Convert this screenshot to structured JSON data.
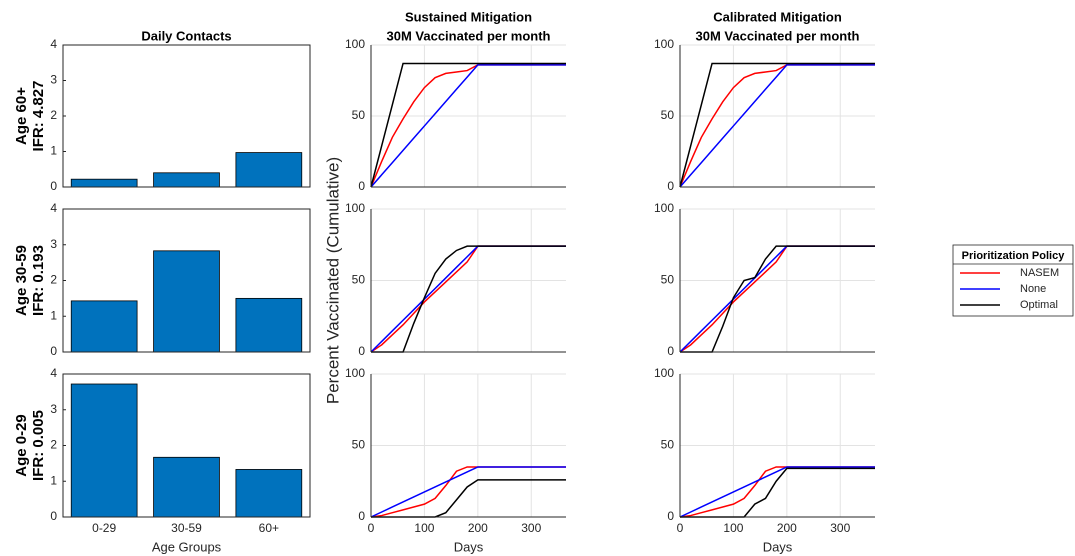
{
  "chart_data": [
    {
      "type": "bar",
      "title": "Daily Contacts",
      "ylabel": [
        "Age 60+",
        "IFR: 4.827"
      ],
      "values": [
        0.22,
        0.4,
        0.97
      ],
      "color": "#0072bd",
      "ylim": [
        0,
        4
      ],
      "yticks": [
        0,
        1,
        2,
        3,
        4
      ]
    },
    {
      "type": "line",
      "title": "Sustained Mitigation",
      "subtitle": "30M Vaccinated per month",
      "x": [
        0,
        20,
        40,
        60,
        80,
        100,
        120,
        140,
        160,
        180,
        200,
        250,
        300,
        365
      ],
      "xlim": [
        0,
        365
      ],
      "xticks": [
        0,
        100,
        200,
        300
      ],
      "xtick_labels_shown": false,
      "ylim": [
        0,
        100
      ],
      "yticks": [
        0,
        50,
        100
      ],
      "grid": true,
      "series": [
        {
          "color": "#ff0000",
          "values": [
            0,
            18,
            35,
            48,
            60,
            70,
            77,
            80,
            81,
            82,
            86,
            86,
            86,
            86
          ]
        },
        {
          "color": "#0000ff",
          "values": [
            0,
            8.6,
            17.2,
            25.8,
            34.4,
            43,
            51.6,
            60.2,
            68.8,
            77.4,
            86,
            86,
            86,
            86
          ]
        },
        {
          "color": "#000000",
          "values": [
            0,
            29,
            58,
            87,
            87,
            87,
            87,
            87,
            87,
            87,
            87,
            87,
            87,
            87
          ]
        }
      ]
    },
    {
      "type": "line",
      "title": "Calibrated Mitigation",
      "subtitle": "30M Vaccinated per month",
      "x": [
        0,
        20,
        40,
        60,
        80,
        100,
        120,
        140,
        160,
        180,
        200,
        250,
        300,
        365
      ],
      "xlim": [
        0,
        365
      ],
      "xticks": [
        0,
        100,
        200,
        300
      ],
      "xtick_labels_shown": false,
      "ylim": [
        0,
        100
      ],
      "yticks": [
        0,
        50,
        100
      ],
      "grid": true,
      "series": [
        {
          "color": "#ff0000",
          "values": [
            0,
            18,
            35,
            48,
            60,
            70,
            77,
            80,
            81,
            82,
            86,
            86,
            86,
            86
          ]
        },
        {
          "color": "#0000ff",
          "values": [
            0,
            8.6,
            17.2,
            25.8,
            34.4,
            43,
            51.6,
            60.2,
            68.8,
            77.4,
            86,
            86,
            86,
            86
          ]
        },
        {
          "color": "#000000",
          "values": [
            0,
            29,
            58,
            87,
            87,
            87,
            87,
            87,
            87,
            87,
            87,
            87,
            87,
            87
          ]
        }
      ]
    },
    {
      "type": "bar",
      "ylabel": [
        "Age 30-59",
        "IFR: 0.193"
      ],
      "values": [
        1.43,
        2.83,
        1.5
      ],
      "color": "#0072bd",
      "ylim": [
        0,
        4
      ],
      "yticks": [
        0,
        1,
        2,
        3,
        4
      ]
    },
    {
      "type": "line",
      "ylabel": "Percent Vaccinated (Cumulative)",
      "x": [
        0,
        20,
        40,
        60,
        80,
        100,
        120,
        140,
        160,
        180,
        200,
        250,
        300,
        365
      ],
      "xlim": [
        0,
        365
      ],
      "xticks": [
        0,
        100,
        200,
        300
      ],
      "xtick_labels_shown": false,
      "ylim": [
        0,
        100
      ],
      "yticks": [
        0,
        50,
        100
      ],
      "grid": true,
      "series": [
        {
          "color": "#ff0000",
          "values": [
            0,
            5,
            12,
            19,
            27,
            35,
            42,
            49,
            56,
            63,
            74,
            74,
            74,
            74
          ]
        },
        {
          "color": "#0000ff",
          "values": [
            0,
            7.4,
            14.8,
            22.2,
            29.6,
            37,
            44.4,
            51.8,
            59.2,
            66.6,
            74,
            74,
            74,
            74
          ]
        },
        {
          "color": "#000000",
          "values": [
            0,
            0,
            0,
            0,
            20,
            38,
            55,
            65,
            71,
            74,
            74,
            74,
            74,
            74
          ]
        }
      ]
    },
    {
      "type": "line",
      "legend_title": "Prioritization Policy",
      "x": [
        0,
        20,
        40,
        60,
        80,
        100,
        120,
        140,
        160,
        180,
        200,
        250,
        300,
        365
      ],
      "xlim": [
        0,
        365
      ],
      "xticks": [
        0,
        100,
        200,
        300
      ],
      "xtick_labels_shown": false,
      "ylim": [
        0,
        100
      ],
      "yticks": [
        0,
        50,
        100
      ],
      "grid": true,
      "series": [
        {
          "name": "NASEM",
          "color": "#ff0000",
          "values": [
            0,
            5,
            12,
            19,
            27,
            35,
            42,
            49,
            56,
            63,
            74,
            74,
            74,
            74
          ]
        },
        {
          "name": "None",
          "color": "#0000ff",
          "values": [
            0,
            7.4,
            14.8,
            22.2,
            29.6,
            37,
            44.4,
            51.8,
            59.2,
            66.6,
            74,
            74,
            74,
            74
          ]
        },
        {
          "name": "Optimal",
          "color": "#000000",
          "values": [
            0,
            0,
            0,
            0,
            18,
            38,
            50,
            52,
            65,
            74,
            74,
            74,
            74,
            74
          ]
        }
      ]
    },
    {
      "type": "bar",
      "ylabel": [
        "Age 0-29",
        "IFR: 0.005"
      ],
      "xlabel": "Age Groups",
      "categories": [
        "0-29",
        "30-59",
        "60+"
      ],
      "values": [
        3.72,
        1.67,
        1.33
      ],
      "color": "#0072bd",
      "ylim": [
        0,
        4
      ],
      "yticks": [
        0,
        1,
        2,
        3,
        4
      ]
    },
    {
      "type": "line",
      "xlabel": "Days",
      "x": [
        0,
        20,
        40,
        60,
        80,
        100,
        120,
        140,
        160,
        180,
        200,
        250,
        300,
        365
      ],
      "xlim": [
        0,
        365
      ],
      "xticks": [
        0,
        100,
        200,
        300
      ],
      "xtick_labels_shown": true,
      "ylim": [
        0,
        100
      ],
      "yticks": [
        0,
        50,
        100
      ],
      "grid": true,
      "series": [
        {
          "color": "#ff0000",
          "values": [
            0,
            1,
            3,
            5,
            7,
            9,
            13,
            22,
            32,
            35,
            35,
            35,
            35,
            35
          ]
        },
        {
          "color": "#0000ff",
          "values": [
            0,
            3.5,
            7,
            10.5,
            14,
            17.5,
            21,
            24.5,
            28,
            31.5,
            35,
            35,
            35,
            35
          ]
        },
        {
          "color": "#000000",
          "values": [
            0,
            0,
            0,
            0,
            0,
            0,
            0,
            3,
            12,
            21,
            26,
            26,
            26,
            26
          ]
        }
      ]
    },
    {
      "type": "line",
      "xlabel": "Days",
      "x": [
        0,
        20,
        40,
        60,
        80,
        100,
        120,
        140,
        160,
        180,
        200,
        250,
        300,
        365
      ],
      "xlim": [
        0,
        365
      ],
      "xticks": [
        0,
        100,
        200,
        300
      ],
      "xtick_labels_shown": true,
      "ylim": [
        0,
        100
      ],
      "yticks": [
        0,
        50,
        100
      ],
      "grid": true,
      "series": [
        {
          "color": "#ff0000",
          "values": [
            0,
            1,
            3,
            5,
            7,
            9,
            13,
            22,
            32,
            35,
            35,
            35,
            35,
            35
          ]
        },
        {
          "color": "#0000ff",
          "values": [
            0,
            3.5,
            7,
            10.5,
            14,
            17.5,
            21,
            24.5,
            28,
            31.5,
            35,
            35,
            35,
            35
          ]
        },
        {
          "color": "#000000",
          "values": [
            0,
            0,
            0,
            0,
            0,
            0,
            0,
            9,
            13,
            25,
            34,
            34,
            34,
            34
          ]
        }
      ]
    }
  ]
}
